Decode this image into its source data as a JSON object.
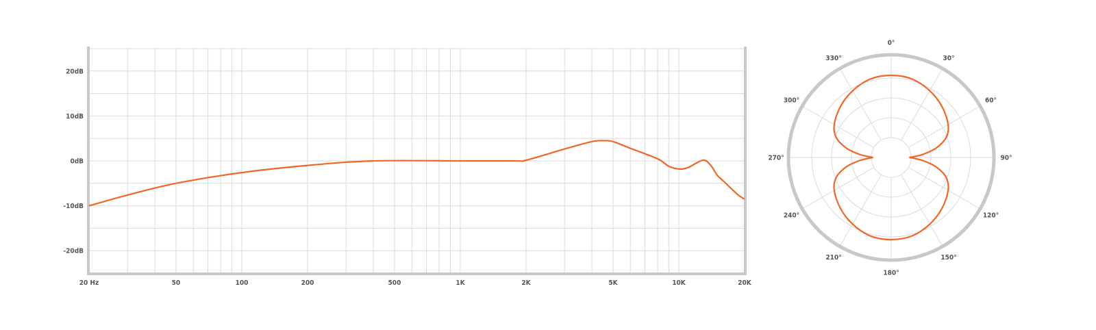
{
  "colors": {
    "curve": "#f26522",
    "grid": "#dadada",
    "axis": "#c8c8c8",
    "label": "#555555"
  },
  "chart_data": [
    {
      "type": "line",
      "x_scale": "log",
      "xlim": [
        20,
        20000
      ],
      "ylim": [
        -25,
        25
      ],
      "grid": true,
      "x_tick_labels": [
        {
          "value": 20,
          "label": "20 Hz"
        },
        {
          "value": 50,
          "label": "50"
        },
        {
          "value": 100,
          "label": "100"
        },
        {
          "value": 200,
          "label": "200"
        },
        {
          "value": 500,
          "label": "500"
        },
        {
          "value": 1000,
          "label": "1K"
        },
        {
          "value": 2000,
          "label": "2K"
        },
        {
          "value": 5000,
          "label": "5K"
        },
        {
          "value": 10000,
          "label": "10K"
        },
        {
          "value": 20000,
          "label": "20K"
        }
      ],
      "x_gridlines": [
        20,
        30,
        40,
        50,
        60,
        70,
        80,
        90,
        100,
        200,
        300,
        400,
        500,
        600,
        700,
        800,
        900,
        1000,
        2000,
        3000,
        4000,
        5000,
        6000,
        7000,
        8000,
        9000,
        10000,
        20000
      ],
      "y_tick_labels": [
        {
          "value": 20,
          "label": "20dB"
        },
        {
          "value": 10,
          "label": "10dB"
        },
        {
          "value": 0,
          "label": "0dB"
        },
        {
          "value": -10,
          "label": "-10dB"
        },
        {
          "value": -20,
          "label": "-20dB"
        }
      ],
      "y_gridlines": [
        25,
        20,
        15,
        10,
        5,
        0,
        -5,
        -10,
        -15,
        -20,
        -25
      ],
      "x": [
        20,
        30,
        50,
        100,
        200,
        400,
        1000,
        1800,
        2000,
        3000,
        4000,
        4500,
        5000,
        6000,
        8000,
        9000,
        10000,
        11000,
        12900,
        14000,
        15000,
        16000,
        18600,
        20000
      ],
      "y": [
        -10,
        -7.6,
        -5,
        -2.6,
        -1,
        0,
        0,
        0,
        0.15,
        2.65,
        4.3,
        4.5,
        4.3,
        2.8,
        0.45,
        -1.2,
        -1.8,
        -1.5,
        0.15,
        -1,
        -3.2,
        -4.5,
        -7.5,
        -8.5
      ]
    },
    {
      "type": "polar",
      "angle_labels": [
        "0°",
        "30°",
        "60°",
        "90°",
        "120°",
        "150°",
        "180°",
        "210°",
        "240°",
        "270°",
        "300°",
        "330°"
      ],
      "rings": 4,
      "theta": [
        0,
        15,
        30,
        45,
        60,
        70,
        78,
        84,
        88,
        90,
        92,
        96,
        102,
        110,
        120,
        135,
        150,
        165,
        180
      ],
      "r": [
        0.8,
        0.79,
        0.75,
        0.7,
        0.64,
        0.57,
        0.45,
        0.32,
        0.22,
        0.18,
        0.22,
        0.32,
        0.45,
        0.57,
        0.64,
        0.7,
        0.75,
        0.79,
        0.8
      ]
    }
  ]
}
